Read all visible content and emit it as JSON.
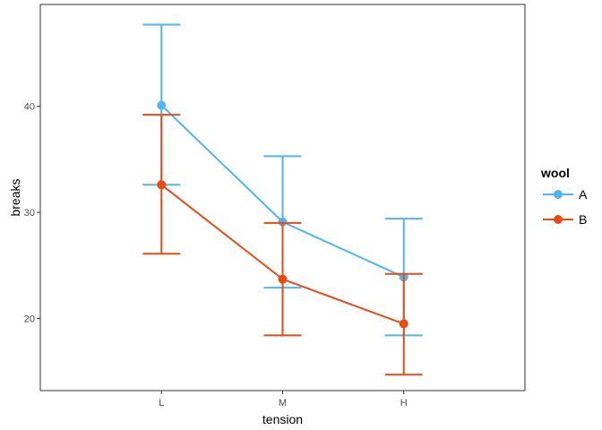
{
  "chart_data": {
    "type": "line",
    "xlabel": "tension",
    "ylabel": "breaks",
    "categories": [
      "L",
      "M",
      "H"
    ],
    "ylim": [
      13.2,
      49.6
    ],
    "yticks": [
      20,
      30,
      40
    ],
    "grid": false,
    "error_bars": true,
    "legend": {
      "title": "wool",
      "position": "right"
    },
    "series": [
      {
        "name": "A",
        "color": "#4FB5EE",
        "values": [
          40.1,
          29.1,
          23.9
        ],
        "lower": [
          32.6,
          22.9,
          18.4
        ],
        "upper": [
          47.7,
          35.3,
          29.4
        ]
      },
      {
        "name": "B",
        "color": "#E84B13",
        "values": [
          32.6,
          23.7,
          19.5
        ],
        "lower": [
          26.1,
          18.4,
          14.7
        ],
        "upper": [
          39.2,
          29.0,
          24.2
        ]
      }
    ]
  }
}
